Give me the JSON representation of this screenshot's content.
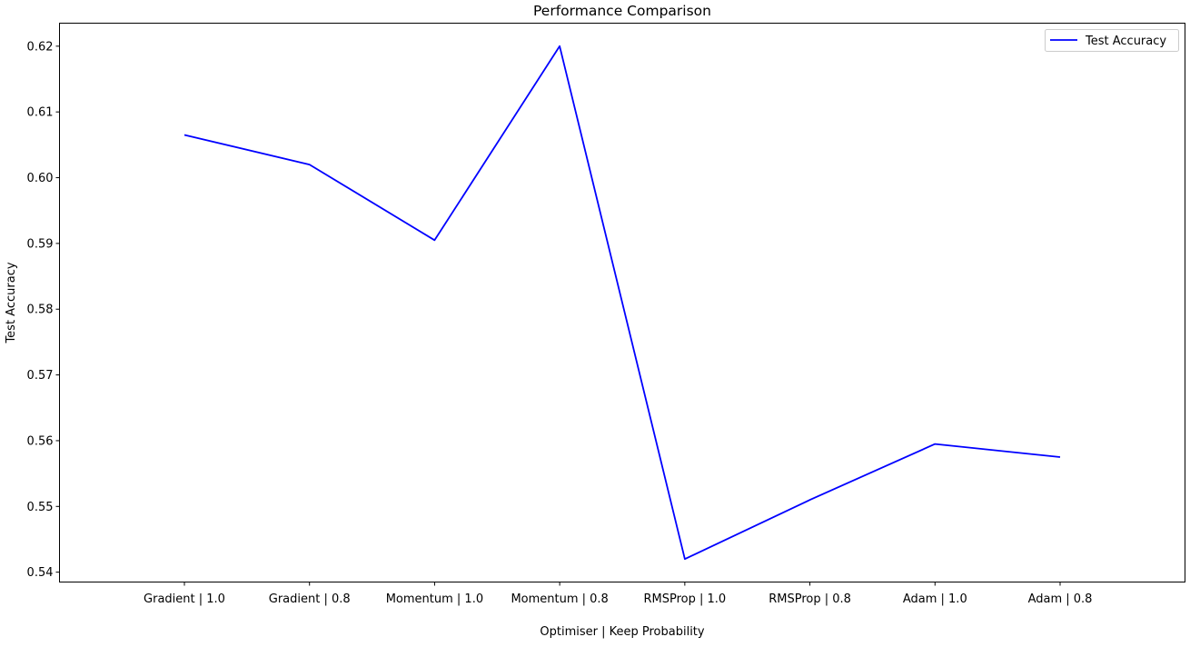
{
  "chart_data": {
    "type": "line",
    "title": "Performance Comparison",
    "xlabel": "Optimiser | Keep Probability",
    "ylabel": "Test Accuracy",
    "categories": [
      "Gradient | 1.0",
      "Gradient | 0.8",
      "Momentum | 1.0",
      "Momentum | 0.8",
      "RMSProp | 1.0",
      "RMSProp | 0.8",
      "Adam | 1.0",
      "Adam | 0.8"
    ],
    "series": [
      {
        "name": "Test Accuracy",
        "color": "#0000ff",
        "values": [
          0.6065,
          0.602,
          0.5905,
          0.62,
          0.542,
          0.551,
          0.5595,
          0.5575
        ]
      }
    ],
    "ylim": [
      0.5385,
      0.6235
    ],
    "yticks": [
      "0.54",
      "0.55",
      "0.56",
      "0.57",
      "0.58",
      "0.59",
      "0.60",
      "0.61",
      "0.62"
    ],
    "ytick_values": [
      0.54,
      0.55,
      0.56,
      0.57,
      0.58,
      0.59,
      0.6,
      0.61,
      0.62
    ],
    "grid": false,
    "legend": {
      "position": "top-right",
      "entries": [
        "Test Accuracy"
      ]
    }
  }
}
